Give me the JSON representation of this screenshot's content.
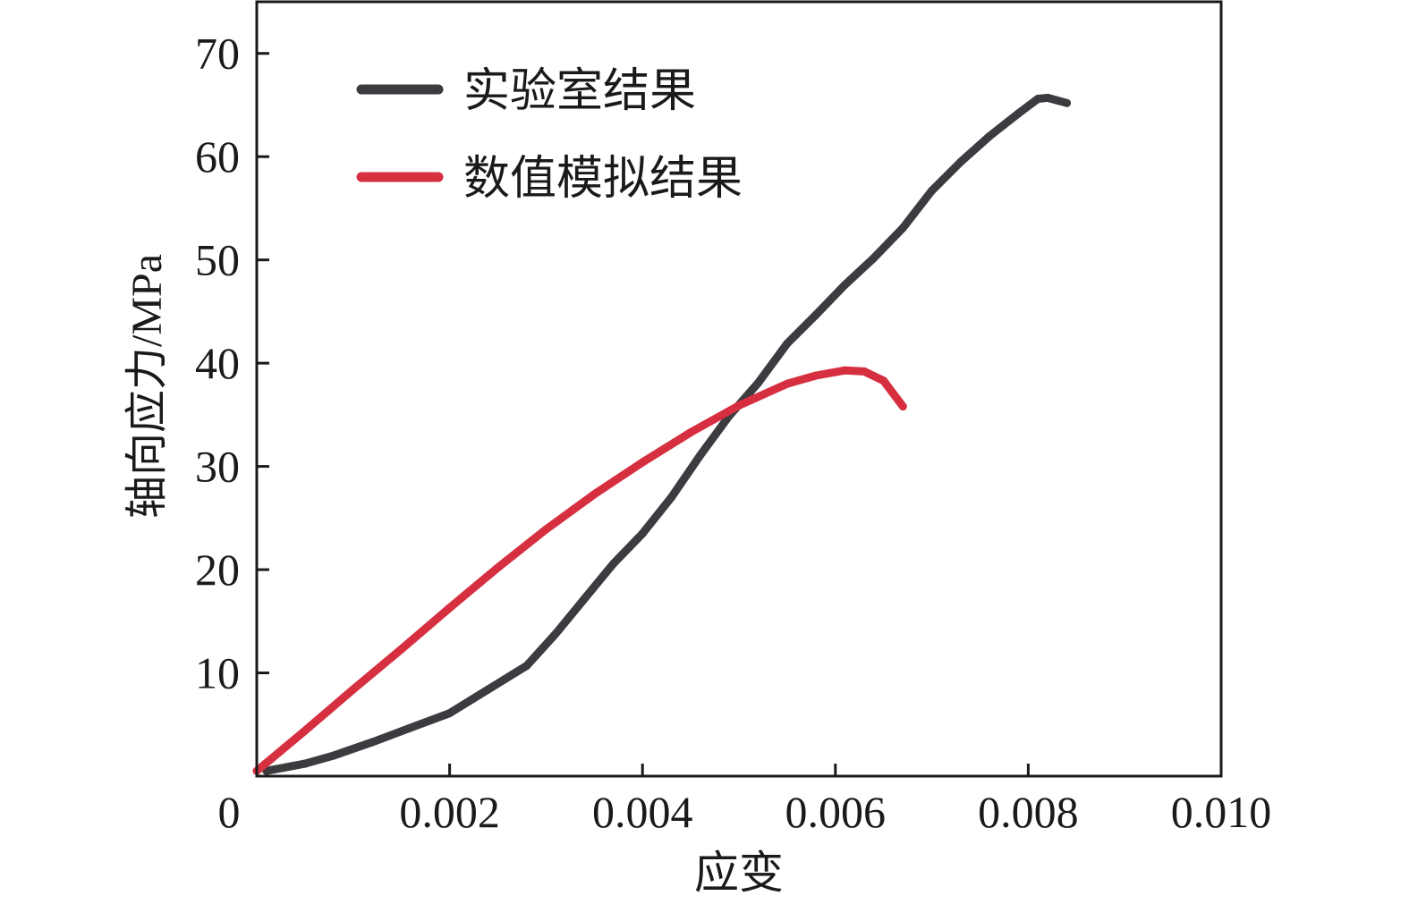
{
  "chart_data": {
    "type": "line",
    "title": "",
    "xlabel": "应变",
    "ylabel": "轴向应力/MPa",
    "xlim": [
      0,
      0.01
    ],
    "ylim": [
      0,
      75
    ],
    "x_ticks": [
      0,
      0.002,
      0.004,
      0.006,
      0.008,
      0.01
    ],
    "x_tick_labels": [
      "0",
      "0.002",
      "0.004",
      "0.006",
      "0.008",
      "0.010"
    ],
    "y_ticks": [
      10,
      20,
      30,
      40,
      50,
      60,
      70
    ],
    "y_tick_labels": [
      "10",
      "20",
      "30",
      "40",
      "50",
      "60",
      "70"
    ],
    "grid": false,
    "legend_position": "top-left",
    "series": [
      {
        "name": "实验室结果",
        "color": "#3b3b40",
        "points": [
          [
            0.0001,
            0.5
          ],
          [
            0.0005,
            1.2
          ],
          [
            0.0008,
            2.0
          ],
          [
            0.0012,
            3.3
          ],
          [
            0.0016,
            4.7
          ],
          [
            0.002,
            6.1
          ],
          [
            0.0024,
            8.4
          ],
          [
            0.0028,
            10.7
          ],
          [
            0.0031,
            13.8
          ],
          [
            0.0034,
            17.2
          ],
          [
            0.0037,
            20.6
          ],
          [
            0.004,
            23.5
          ],
          [
            0.0043,
            27.0
          ],
          [
            0.0046,
            31.1
          ],
          [
            0.0049,
            34.9
          ],
          [
            0.0052,
            38.1
          ],
          [
            0.0055,
            41.9
          ],
          [
            0.0058,
            44.7
          ],
          [
            0.0061,
            47.6
          ],
          [
            0.0064,
            50.2
          ],
          [
            0.0067,
            53.1
          ],
          [
            0.007,
            56.7
          ],
          [
            0.0073,
            59.5
          ],
          [
            0.0076,
            62.0
          ],
          [
            0.0079,
            64.2
          ],
          [
            0.0081,
            65.6
          ],
          [
            0.0082,
            65.7
          ],
          [
            0.0084,
            65.2
          ]
        ]
      },
      {
        "name": "数值模拟结果",
        "color": "#d62f40",
        "points": [
          [
            0.0,
            0.5
          ],
          [
            0.0005,
            4.4
          ],
          [
            0.001,
            8.4
          ],
          [
            0.0015,
            12.3
          ],
          [
            0.002,
            16.3
          ],
          [
            0.0025,
            20.2
          ],
          [
            0.003,
            23.9
          ],
          [
            0.0035,
            27.3
          ],
          [
            0.004,
            30.4
          ],
          [
            0.0045,
            33.3
          ],
          [
            0.005,
            35.9
          ],
          [
            0.0055,
            38.0
          ],
          [
            0.0058,
            38.8
          ],
          [
            0.0061,
            39.3
          ],
          [
            0.0063,
            39.2
          ],
          [
            0.0065,
            38.3
          ],
          [
            0.0067,
            35.8
          ]
        ]
      }
    ]
  }
}
